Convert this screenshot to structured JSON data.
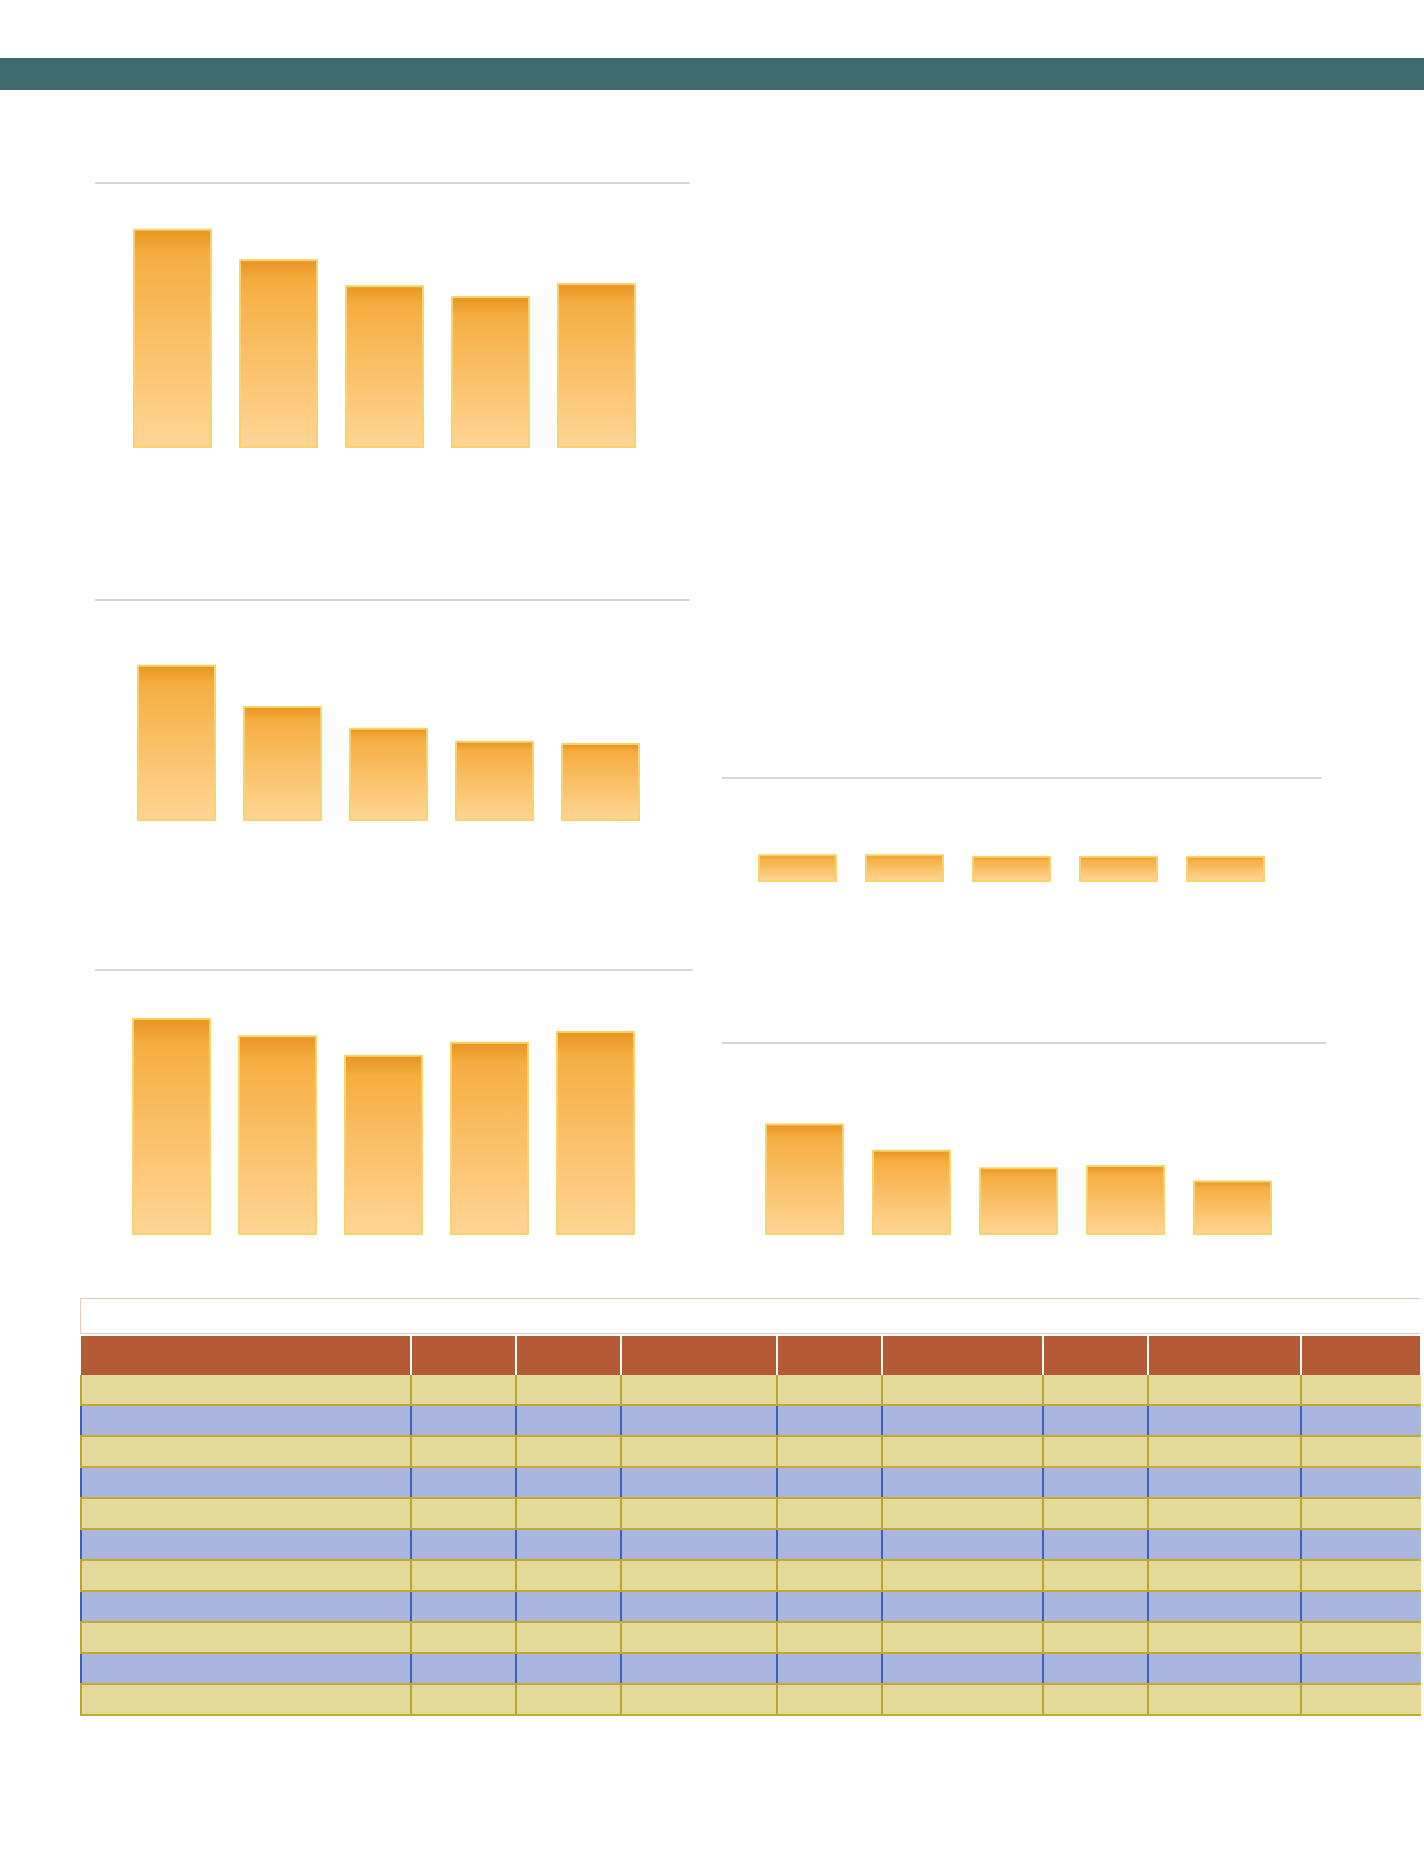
{
  "page": {
    "header_color": "#3d6b70",
    "bar_top_color": "#e89420",
    "bar_bottom_color": "#ffd595"
  },
  "chart_data": [
    {
      "id": "chart-left-top",
      "type": "bar",
      "categories": [
        "",
        "",
        "",
        "",
        ""
      ],
      "values": [
        100,
        86,
        74,
        69,
        75
      ],
      "ylim": [
        0,
        110
      ]
    },
    {
      "id": "chart-left-middle",
      "type": "bar",
      "categories": [
        "",
        "",
        "",
        "",
        ""
      ],
      "values": [
        71,
        52,
        42,
        36,
        35
      ],
      "ylim": [
        0,
        110
      ]
    },
    {
      "id": "chart-left-bottom",
      "type": "bar",
      "categories": [
        "",
        "",
        "",
        "",
        ""
      ],
      "values": [
        99,
        91,
        82,
        88,
        93
      ],
      "ylim": [
        0,
        110
      ]
    },
    {
      "id": "chart-right-top",
      "type": "bar",
      "categories": [
        "",
        "",
        "",
        "",
        ""
      ],
      "values": [
        16,
        16,
        15,
        15,
        15
      ],
      "ylim": [
        0,
        110
      ]
    },
    {
      "id": "chart-right-bottom",
      "type": "bar",
      "categories": [
        "",
        "",
        "",
        "",
        ""
      ],
      "values": [
        50,
        38,
        30,
        31,
        24
      ],
      "ylim": [
        0,
        110
      ]
    }
  ],
  "table": {
    "title": "",
    "columns": [
      "",
      "",
      "",
      "",
      "",
      "",
      "",
      "",
      ""
    ],
    "rows": [
      [
        "",
        "",
        "",
        "",
        "",
        "",
        "",
        "",
        ""
      ],
      [
        "",
        "",
        "",
        "",
        "",
        "",
        "",
        "",
        ""
      ],
      [
        "",
        "",
        "",
        "",
        "",
        "",
        "",
        "",
        ""
      ],
      [
        "",
        "",
        "",
        "",
        "",
        "",
        "",
        "",
        ""
      ],
      [
        "",
        "",
        "",
        "",
        "",
        "",
        "",
        "",
        ""
      ],
      [
        "",
        "",
        "",
        "",
        "",
        "",
        "",
        "",
        ""
      ],
      [
        "",
        "",
        "",
        "",
        "",
        "",
        "",
        "",
        ""
      ],
      [
        "",
        "",
        "",
        "",
        "",
        "",
        "",
        "",
        ""
      ],
      [
        "",
        "",
        "",
        "",
        "",
        "",
        "",
        "",
        ""
      ],
      [
        "",
        "",
        "",
        "",
        "",
        "",
        "",
        "",
        ""
      ],
      [
        "",
        "",
        "",
        "",
        "",
        "",
        "",
        "",
        ""
      ]
    ]
  }
}
